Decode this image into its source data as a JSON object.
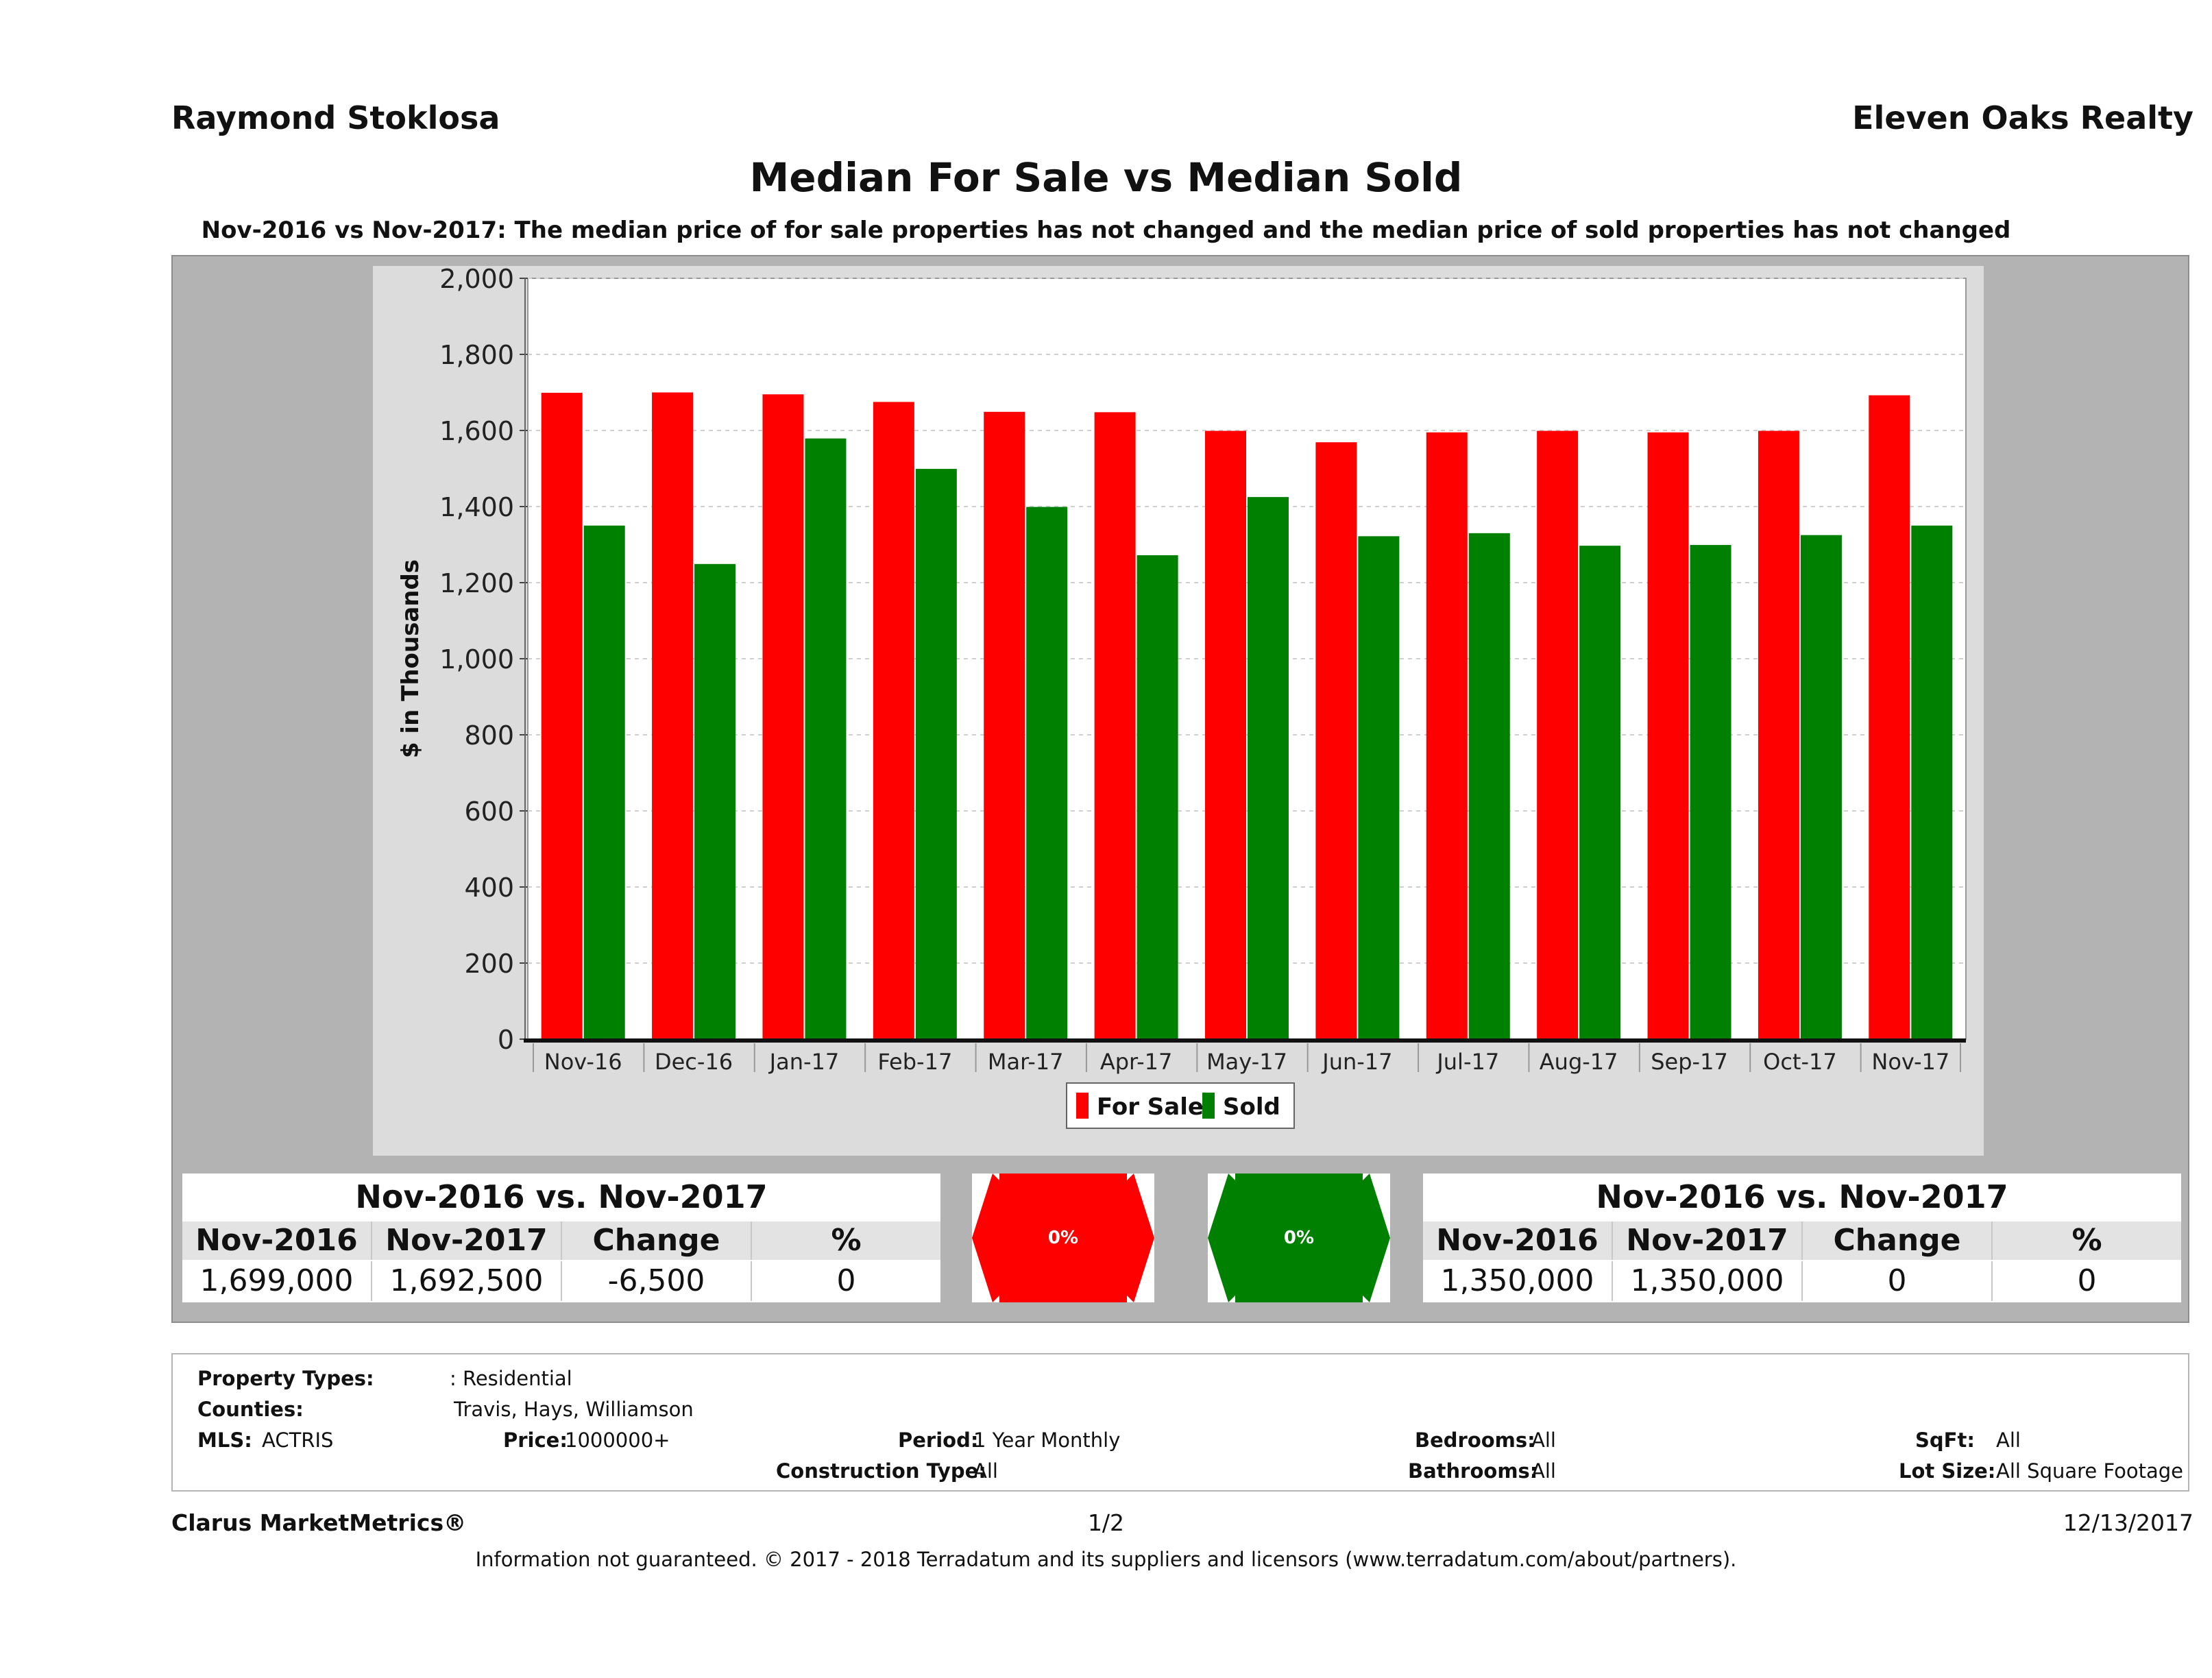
{
  "header": {
    "agent": "Raymond Stoklosa",
    "brokerage": "Eleven Oaks Realty",
    "title": "Median For Sale vs Median Sold",
    "subtitle": "Nov-2016 vs Nov-2017: The median price of for sale properties has not changed and the median price of sold properties has not changed"
  },
  "chart_data": {
    "type": "bar",
    "ylabel": "$ in Thousands",
    "ylim": [
      0,
      2000
    ],
    "yticks": [
      "0",
      "200",
      "400",
      "600",
      "800",
      "1,000",
      "1,200",
      "1,400",
      "1,600",
      "1,800",
      "2,000"
    ],
    "categories": [
      "Nov-16",
      "Dec-16",
      "Jan-17",
      "Feb-17",
      "Mar-17",
      "Apr-17",
      "May-17",
      "Jun-17",
      "Jul-17",
      "Aug-17",
      "Sep-17",
      "Oct-17",
      "Nov-17"
    ],
    "series": [
      {
        "name": "For Sale",
        "color": "#ff0000",
        "values": [
          1699,
          1700,
          1695,
          1675,
          1649,
          1648,
          1599,
          1569,
          1595,
          1599,
          1595,
          1599,
          1692.5
        ]
      },
      {
        "name": "Sold",
        "color": "#008000",
        "values": [
          1350,
          1249,
          1579,
          1499,
          1399,
          1272,
          1425,
          1322,
          1330,
          1297,
          1299,
          1325,
          1350
        ]
      }
    ],
    "legend": "bottom-center",
    "grid": true
  },
  "for_sale_table": {
    "heading": "Nov-2016 vs. Nov-2017",
    "columns": [
      "Nov-2016",
      "Nov-2017",
      "Change",
      "%"
    ],
    "values": [
      "1,699,000",
      "1,692,500",
      "-6,500",
      "0"
    ]
  },
  "for_sale_indicator": {
    "label": "0%",
    "color": "#ff0000"
  },
  "sold_indicator": {
    "label": "0%",
    "color": "#008000"
  },
  "sold_table": {
    "heading": "Nov-2016 vs. Nov-2017",
    "columns": [
      "Nov-2016",
      "Nov-2017",
      "Change",
      "%"
    ],
    "values": [
      "1,350,000",
      "1,350,000",
      "0",
      "0"
    ]
  },
  "criteria": {
    "property_types_label": "Property Types:",
    "property_types": ": Residential",
    "counties_label": "Counties:",
    "counties": "Travis, Hays, Williamson",
    "mls_label": "MLS:",
    "mls": "ACTRIS",
    "price_label": "Price:",
    "price": "1000000+",
    "period_label": "Period:",
    "period": "1 Year Monthly",
    "construction_label": "Construction Type:",
    "construction": "All",
    "bedrooms_label": "Bedrooms:",
    "bedrooms": "All",
    "bathrooms_label": "Bathrooms:",
    "bathrooms": "All",
    "sqft_label": "SqFt:",
    "sqft": "All",
    "lot_label": "Lot Size:",
    "lot": "All Square Footage"
  },
  "footer": {
    "product": "Clarus MarketMetrics®",
    "page": "1/2",
    "date": "12/13/2017",
    "disclaimer": "Information not guaranteed. © 2017 - 2018 Terradatum and its suppliers and licensors (www.terradatum.com/about/partners)."
  }
}
